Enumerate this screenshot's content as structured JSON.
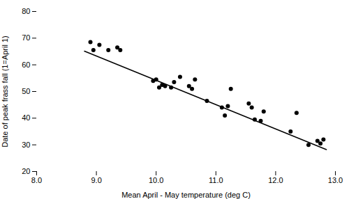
{
  "chart_data": {
    "type": "scatter",
    "xlabel": "Mean April - May temperature (deg C)",
    "ylabel": "Date of peak frass fall (1=April 1)",
    "xlim": [
      8,
      13
    ],
    "ylim": [
      20,
      80
    ],
    "xticks": [
      8,
      9,
      10,
      11,
      12,
      13
    ],
    "yticks": [
      20,
      30,
      40,
      50,
      60,
      70,
      80
    ],
    "series": [
      {
        "type": "scatter",
        "color": "#000000",
        "x": [
          8.9,
          8.95,
          9.05,
          9.2,
          9.35,
          9.4,
          9.95,
          10.0,
          10.05,
          10.1,
          10.15,
          10.25,
          10.3,
          10.4,
          10.55,
          10.6,
          10.65,
          10.85,
          11.1,
          11.15,
          11.2,
          11.25,
          11.55,
          11.6,
          11.65,
          11.75,
          11.8,
          12.25,
          12.35,
          12.55,
          12.7,
          12.75,
          12.8
        ],
        "values": [
          68.5,
          65.5,
          67.5,
          65.5,
          66.5,
          65.5,
          54.0,
          54.5,
          51.5,
          52.5,
          52.0,
          51.5,
          53.5,
          55.5,
          52.0,
          51.0,
          54.5,
          46.5,
          44.0,
          41.0,
          44.5,
          51.0,
          45.5,
          44.0,
          39.5,
          39.0,
          42.5,
          35.0,
          42.0,
          30.0,
          31.5,
          30.5,
          32.0
        ]
      },
      {
        "type": "line",
        "color": "#000000",
        "x": [
          8.8,
          12.85
        ],
        "values": [
          65.144,
          28.208
        ]
      }
    ]
  }
}
